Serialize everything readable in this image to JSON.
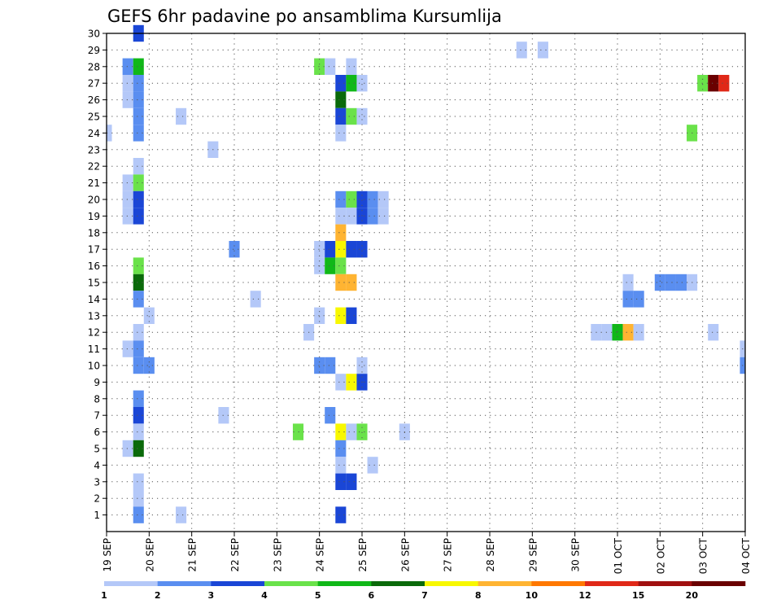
{
  "chart_data": {
    "type": "heatmap",
    "title": "GEFS 6hr padavine po ansamblima Kursumlija",
    "xlabel": "",
    "ylabel": "",
    "x_tick_labels": [
      "19 SEP",
      "20 SEP",
      "21 SEP",
      "22 SEP",
      "23 SEP",
      "24 SEP",
      "25 SEP",
      "26 SEP",
      "27 SEP",
      "28 SEP",
      "29 SEP",
      "30 SEP",
      "01 OCT",
      "02 OCT",
      "03 OCT",
      "04 OCT"
    ],
    "y_tick_labels": [
      "1",
      "2",
      "3",
      "4",
      "5",
      "6",
      "7",
      "8",
      "9",
      "10",
      "11",
      "12",
      "13",
      "14",
      "15",
      "16",
      "17",
      "18",
      "19",
      "20",
      "21",
      "22",
      "23",
      "24",
      "25",
      "26",
      "27",
      "28",
      "29",
      "30"
    ],
    "x_unit": "6-hour step from 19 SEP 00Z",
    "x_range": [
      0,
      60
    ],
    "y_range": [
      0,
      30
    ],
    "grid": true,
    "colorbar": {
      "levels": [
        1,
        2,
        3,
        4,
        5,
        6,
        7,
        8,
        10,
        12,
        15,
        20
      ],
      "colors": [
        "#b4c8f8",
        "#5a8ef0",
        "#1a46d6",
        "#6ae24a",
        "#10b818",
        "#0a6a0a",
        "#f8f800",
        "#ffb432",
        "#ff7800",
        "#e02818",
        "#a01010",
        "#6a0000"
      ]
    },
    "cells": [
      {
        "member": 30,
        "step": 3,
        "class": 3
      },
      {
        "member": 29,
        "step": 39,
        "class": 1
      },
      {
        "member": 29,
        "step": 41,
        "class": 1
      },
      {
        "member": 28,
        "step": 2,
        "class": 2
      },
      {
        "member": 28,
        "step": 3,
        "class": 5
      },
      {
        "member": 28,
        "step": 20,
        "class": 4
      },
      {
        "member": 28,
        "step": 21,
        "class": 1
      },
      {
        "member": 28,
        "step": 23,
        "class": 1
      },
      {
        "member": 27,
        "step": 2,
        "class": 1
      },
      {
        "member": 27,
        "step": 3,
        "class": 2
      },
      {
        "member": 27,
        "step": 22,
        "class": 3
      },
      {
        "member": 27,
        "step": 23,
        "class": 5
      },
      {
        "member": 27,
        "step": 24,
        "class": 1
      },
      {
        "member": 27,
        "step": 56,
        "class": 4
      },
      {
        "member": 27,
        "step": 57,
        "class": 12
      },
      {
        "member": 27,
        "step": 58,
        "class": 10
      },
      {
        "member": 26,
        "step": 2,
        "class": 1
      },
      {
        "member": 26,
        "step": 3,
        "class": 2
      },
      {
        "member": 26,
        "step": 22,
        "class": 6
      },
      {
        "member": 25,
        "step": 3,
        "class": 2
      },
      {
        "member": 25,
        "step": 7,
        "class": 1
      },
      {
        "member": 25,
        "step": 22,
        "class": 3
      },
      {
        "member": 25,
        "step": 23,
        "class": 4
      },
      {
        "member": 25,
        "step": 24,
        "class": 1
      },
      {
        "member": 24,
        "step": 0,
        "class": 1
      },
      {
        "member": 24,
        "step": 3,
        "class": 2
      },
      {
        "member": 24,
        "step": 22,
        "class": 1
      },
      {
        "member": 24,
        "step": 55,
        "class": 4
      },
      {
        "member": 23,
        "step": 10,
        "class": 1
      },
      {
        "member": 22,
        "step": 3,
        "class": 1
      },
      {
        "member": 21,
        "step": 2,
        "class": 1
      },
      {
        "member": 21,
        "step": 3,
        "class": 4
      },
      {
        "member": 20,
        "step": 2,
        "class": 1
      },
      {
        "member": 20,
        "step": 3,
        "class": 3
      },
      {
        "member": 20,
        "step": 22,
        "class": 2
      },
      {
        "member": 20,
        "step": 23,
        "class": 4
      },
      {
        "member": 20,
        "step": 24,
        "class": 3
      },
      {
        "member": 20,
        "step": 25,
        "class": 2
      },
      {
        "member": 20,
        "step": 26,
        "class": 1
      },
      {
        "member": 19,
        "step": 2,
        "class": 1
      },
      {
        "member": 19,
        "step": 3,
        "class": 3
      },
      {
        "member": 19,
        "step": 22,
        "class": 1
      },
      {
        "member": 19,
        "step": 23,
        "class": 1
      },
      {
        "member": 19,
        "step": 24,
        "class": 3
      },
      {
        "member": 19,
        "step": 25,
        "class": 2
      },
      {
        "member": 19,
        "step": 26,
        "class": 1
      },
      {
        "member": 18,
        "step": 22,
        "class": 8
      },
      {
        "member": 17,
        "step": 12,
        "class": 2
      },
      {
        "member": 17,
        "step": 20,
        "class": 1
      },
      {
        "member": 17,
        "step": 21,
        "class": 3
      },
      {
        "member": 17,
        "step": 22,
        "class": 7
      },
      {
        "member": 17,
        "step": 23,
        "class": 3
      },
      {
        "member": 17,
        "step": 24,
        "class": 3
      },
      {
        "member": 16,
        "step": 3,
        "class": 4
      },
      {
        "member": 16,
        "step": 20,
        "class": 1
      },
      {
        "member": 16,
        "step": 21,
        "class": 5
      },
      {
        "member": 16,
        "step": 22,
        "class": 4
      },
      {
        "member": 15,
        "step": 3,
        "class": 6
      },
      {
        "member": 15,
        "step": 22,
        "class": 8
      },
      {
        "member": 15,
        "step": 23,
        "class": 8
      },
      {
        "member": 15,
        "step": 49,
        "class": 1
      },
      {
        "member": 15,
        "step": 52,
        "class": 2
      },
      {
        "member": 15,
        "step": 53,
        "class": 2
      },
      {
        "member": 15,
        "step": 54,
        "class": 2
      },
      {
        "member": 15,
        "step": 55,
        "class": 1
      },
      {
        "member": 14,
        "step": 3,
        "class": 2
      },
      {
        "member": 14,
        "step": 14,
        "class": 1
      },
      {
        "member": 14,
        "step": 49,
        "class": 2
      },
      {
        "member": 14,
        "step": 50,
        "class": 2
      },
      {
        "member": 13,
        "step": 4,
        "class": 1
      },
      {
        "member": 13,
        "step": 20,
        "class": 1
      },
      {
        "member": 13,
        "step": 22,
        "class": 7
      },
      {
        "member": 13,
        "step": 23,
        "class": 3
      },
      {
        "member": 12,
        "step": 3,
        "class": 1
      },
      {
        "member": 12,
        "step": 19,
        "class": 1
      },
      {
        "member": 12,
        "step": 46,
        "class": 1
      },
      {
        "member": 12,
        "step": 47,
        "class": 1
      },
      {
        "member": 12,
        "step": 48,
        "class": 5
      },
      {
        "member": 12,
        "step": 49,
        "class": 8
      },
      {
        "member": 12,
        "step": 50,
        "class": 1
      },
      {
        "member": 12,
        "step": 57,
        "class": 1
      },
      {
        "member": 11,
        "step": 2,
        "class": 1
      },
      {
        "member": 11,
        "step": 3,
        "class": 2
      },
      {
        "member": 11,
        "step": 60,
        "class": 1
      },
      {
        "member": 10,
        "step": 3,
        "class": 2
      },
      {
        "member": 10,
        "step": 4,
        "class": 2
      },
      {
        "member": 10,
        "step": 20,
        "class": 2
      },
      {
        "member": 10,
        "step": 21,
        "class": 2
      },
      {
        "member": 10,
        "step": 24,
        "class": 1
      },
      {
        "member": 10,
        "step": 60,
        "class": 2
      },
      {
        "member": 9,
        "step": 22,
        "class": 1
      },
      {
        "member": 9,
        "step": 23,
        "class": 7
      },
      {
        "member": 9,
        "step": 24,
        "class": 3
      },
      {
        "member": 8,
        "step": 3,
        "class": 2
      },
      {
        "member": 7,
        "step": 3,
        "class": 3
      },
      {
        "member": 7,
        "step": 11,
        "class": 1
      },
      {
        "member": 7,
        "step": 21,
        "class": 2
      },
      {
        "member": 6,
        "step": 3,
        "class": 1
      },
      {
        "member": 6,
        "step": 18,
        "class": 4
      },
      {
        "member": 6,
        "step": 22,
        "class": 7
      },
      {
        "member": 6,
        "step": 23,
        "class": 1
      },
      {
        "member": 6,
        "step": 24,
        "class": 4
      },
      {
        "member": 6,
        "step": 28,
        "class": 1
      },
      {
        "member": 5,
        "step": 2,
        "class": 1
      },
      {
        "member": 5,
        "step": 3,
        "class": 6
      },
      {
        "member": 5,
        "step": 22,
        "class": 2
      },
      {
        "member": 4,
        "step": 22,
        "class": 1
      },
      {
        "member": 4,
        "step": 25,
        "class": 1
      },
      {
        "member": 3,
        "step": 3,
        "class": 1
      },
      {
        "member": 3,
        "step": 22,
        "class": 3
      },
      {
        "member": 3,
        "step": 23,
        "class": 3
      },
      {
        "member": 2,
        "step": 3,
        "class": 1
      },
      {
        "member": 1,
        "step": 3,
        "class": 2
      },
      {
        "member": 1,
        "step": 7,
        "class": 1
      },
      {
        "member": 1,
        "step": 22,
        "class": 3
      }
    ]
  }
}
